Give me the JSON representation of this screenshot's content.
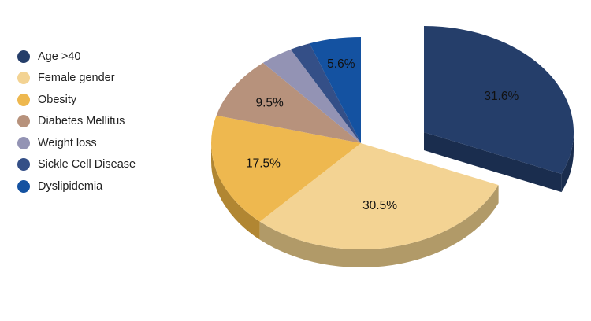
{
  "chart_data": {
    "type": "pie",
    "title": "",
    "legend_position": "left",
    "three_d": true,
    "exploded_slice": "Age >40",
    "slices": [
      {
        "label": "Age >40",
        "value": 31.6,
        "value_label": "31.6%",
        "color": "#253e6a",
        "side_color": "#1a2d4e"
      },
      {
        "label": "Female gender",
        "value": 30.5,
        "value_label": "30.5%",
        "color": "#f3d393",
        "side_color": "#b19a68"
      },
      {
        "label": "Obesity",
        "value": 17.5,
        "value_label": "17.5%",
        "color": "#eeb84f",
        "side_color": "#b18632"
      },
      {
        "label": "Diabetes Mellitus",
        "value": 9.5,
        "value_label": "9.5%",
        "color": "#b7927c",
        "side_color": "#86695a"
      },
      {
        "label": "Weight loss",
        "value": 3.6,
        "value_label": "",
        "color": "#9393b4",
        "side_color": "#6b6b85"
      },
      {
        "label": "Sickle Cell Disease",
        "value": 2.2,
        "value_label": "",
        "color": "#344f87",
        "side_color": "#263a63"
      },
      {
        "label": "Dyslipidemia",
        "value": 5.6,
        "value_label": "5.6%",
        "color": "#1452a1",
        "side_color": "#0e3b75"
      }
    ]
  }
}
